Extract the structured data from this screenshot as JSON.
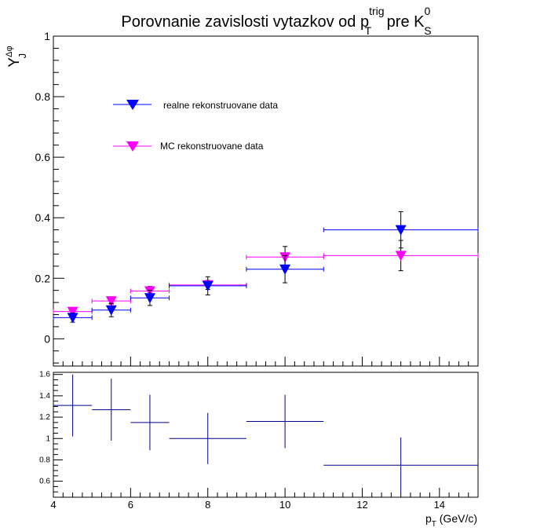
{
  "chart_data": [
    {
      "type": "scatter",
      "title": {
        "main": "Porovnanie zavislosti vytazkov od p",
        "sup": "trig",
        "sub": "T",
        "mid": " pre K",
        "sup2": "0",
        "sub2": "S"
      },
      "ylabel": {
        "main": "Y",
        "sup": "Δφ",
        "sub": "J"
      },
      "xlabel": "",
      "xlim": [
        4,
        15
      ],
      "ylim": [
        -0.09,
        1.0
      ],
      "y_ticks": [
        0,
        0.2,
        0.4,
        0.6,
        0.8,
        1
      ],
      "y_tick_labels": [
        "0",
        "0.2",
        "0.4",
        "0.6",
        "0.8",
        "1"
      ],
      "grid": false,
      "legend_position": "top-left",
      "series": [
        {
          "name": "realne rekonstruovane data",
          "color": "#0000ff",
          "marker": "inverted-triangle",
          "points": [
            {
              "x": 4.5,
              "xlow": 4,
              "xhigh": 5,
              "y": 0.07,
              "yerr": 0.015
            },
            {
              "x": 5.5,
              "xlow": 5,
              "xhigh": 6,
              "y": 0.095,
              "yerr": 0.022
            },
            {
              "x": 6.5,
              "xlow": 6,
              "xhigh": 7,
              "y": 0.135,
              "yerr": 0.025
            },
            {
              "x": 8,
              "xlow": 7,
              "xhigh": 9,
              "y": 0.175,
              "yerr": 0.03
            },
            {
              "x": 10,
              "xlow": 9,
              "xhigh": 11,
              "y": 0.23,
              "yerr": 0.045
            },
            {
              "x": 13,
              "xlow": 11,
              "xhigh": 15,
              "y": 0.36,
              "yerr": 0.06
            }
          ]
        },
        {
          "name": "MC rekonstruovane data",
          "color": "#ff00ff",
          "marker": "inverted-triangle",
          "points": [
            {
              "x": 4.5,
              "xlow": 4,
              "xhigh": 5,
              "y": 0.09,
              "yerr": 0.008
            },
            {
              "x": 5.5,
              "xlow": 5,
              "xhigh": 6,
              "y": 0.125,
              "yerr": 0.01
            },
            {
              "x": 6.5,
              "xlow": 6,
              "xhigh": 7,
              "y": 0.158,
              "yerr": 0.015
            },
            {
              "x": 8,
              "xlow": 7,
              "xhigh": 9,
              "y": 0.178,
              "yerr": 0.015
            },
            {
              "x": 10,
              "xlow": 9,
              "xhigh": 11,
              "y": 0.27,
              "yerr": 0.035
            },
            {
              "x": 13,
              "xlow": 11,
              "xhigh": 15,
              "y": 0.275,
              "yerr": 0.05
            }
          ]
        }
      ]
    },
    {
      "type": "scatter",
      "title": "",
      "xlabel": {
        "main": "p",
        "sub": "T",
        "unit": " (GeV/c)"
      },
      "ylabel": "",
      "xlim": [
        4,
        15
      ],
      "ylim": [
        0.45,
        1.62
      ],
      "x_ticks": [
        4,
        6,
        8,
        10,
        12,
        14
      ],
      "x_tick_labels": [
        "4",
        "6",
        "8",
        "10",
        "12",
        "14"
      ],
      "y_ticks": [
        0.6,
        0.8,
        1,
        1.2,
        1.4,
        1.6
      ],
      "y_tick_labels": [
        "0.6",
        "0.8",
        "1",
        "1.2",
        "1.4",
        "1.6"
      ],
      "grid": false,
      "series": [
        {
          "color": "#00008b",
          "points": [
            {
              "x": 4.5,
              "xlow": 4,
              "xhigh": 5,
              "y": 1.31,
              "yerr": 0.29
            },
            {
              "x": 5.5,
              "xlow": 5,
              "xhigh": 6,
              "y": 1.27,
              "yerr": 0.29
            },
            {
              "x": 6.5,
              "xlow": 6,
              "xhigh": 7,
              "y": 1.15,
              "yerr": 0.26
            },
            {
              "x": 8,
              "xlow": 7,
              "xhigh": 9,
              "y": 1.0,
              "yerr": 0.24
            },
            {
              "x": 10,
              "xlow": 9,
              "xhigh": 11,
              "y": 1.16,
              "yerr": 0.25
            },
            {
              "x": 13,
              "xlow": 11,
              "xhigh": 15,
              "y": 0.75,
              "yerr": 0.26
            }
          ]
        }
      ]
    }
  ]
}
